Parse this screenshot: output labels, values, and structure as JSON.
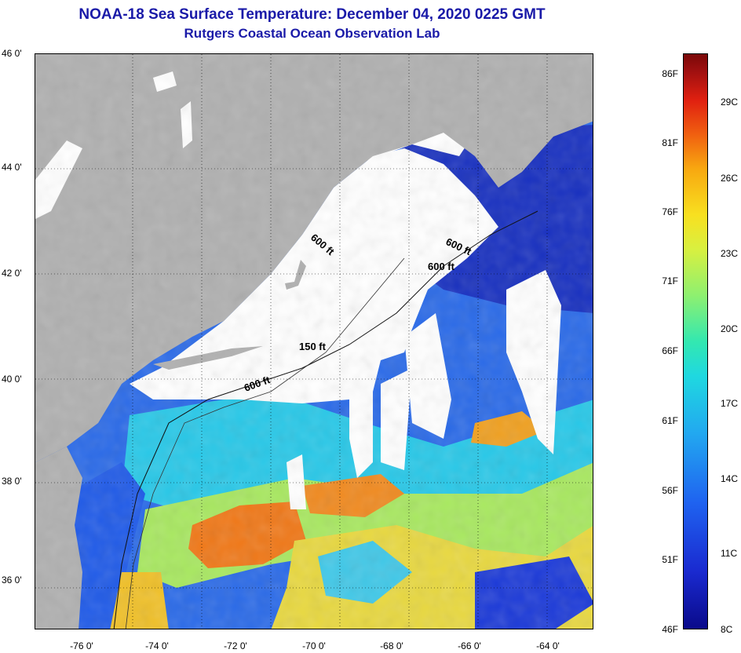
{
  "header": {
    "title": "NOAA-18 Sea Surface Temperature:  December 04, 2020 0225 GMT",
    "subtitle": "Rutgers Coastal Ocean Observation Lab"
  },
  "map": {
    "latitude_labels": [
      "46 0'",
      "44 0'",
      "42 0'",
      "40 0'",
      "38 0'",
      "36 0'"
    ],
    "longitude_labels": [
      "-76 0'",
      "-74 0'",
      "-72 0'",
      "-70 0'",
      "-68 0'",
      "-66 0'",
      "-64 0'"
    ],
    "isobath_labels": [
      "600 ft",
      "600 ft",
      "600 ft",
      "150 ft",
      "600 ft"
    ],
    "colors": {
      "land": "#b0b0b0",
      "cloud": "#ffffff",
      "cold_water": "#1a2ad0",
      "warm_water": "#f07010"
    }
  },
  "colorbar": {
    "fahrenheit": [
      "86F",
      "81F",
      "76F",
      "71F",
      "66F",
      "61F",
      "56F",
      "51F",
      "46F"
    ],
    "celsius": [
      "29C",
      "26C",
      "23C",
      "20C",
      "17C",
      "14C",
      "11C",
      "8C"
    ]
  }
}
